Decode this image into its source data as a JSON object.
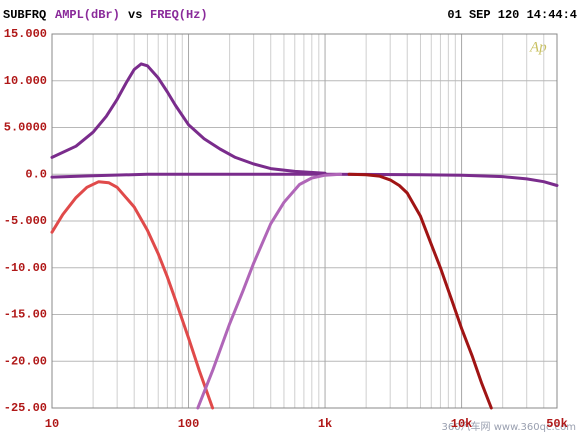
{
  "header": {
    "name": "SUBFRQ",
    "y_label": "AMPL(dBr)",
    "vs": "vs",
    "x_label": "FREQ(Hz)",
    "date": "01 SEP 120 14:44:4",
    "logo": "Ap",
    "watermark": "360汽车网 www.360qc.com"
  },
  "chart_data": {
    "type": "line",
    "xscale": "log",
    "grid": true,
    "xlim": [
      10,
      50000
    ],
    "xticks": [
      10,
      100,
      {
        "value": 1000,
        "label": "1k"
      },
      {
        "value": 10000,
        "label": "10k"
      },
      {
        "value": 50000,
        "label": "50k"
      }
    ],
    "xminor": [
      20,
      30,
      40,
      50,
      60,
      70,
      80,
      90,
      200,
      300,
      400,
      500,
      600,
      700,
      800,
      900,
      2000,
      3000,
      4000,
      5000,
      6000,
      7000,
      8000,
      9000,
      20000,
      30000,
      40000
    ],
    "ylim": [
      -25,
      15
    ],
    "yticks": [
      {
        "value": 15,
        "label": "15.000"
      },
      {
        "value": 10,
        "label": "10.000"
      },
      {
        "value": 5,
        "label": "5.0000"
      },
      {
        "value": 0,
        "label": "0.0"
      },
      {
        "value": -5,
        "label": "-5.000"
      },
      {
        "value": -10,
        "label": "-10.00"
      },
      {
        "value": -15,
        "label": "-15.00"
      },
      {
        "value": -20,
        "label": "-20.00"
      },
      {
        "value": -25,
        "label": "-25.00"
      }
    ],
    "series": [
      {
        "color": "#7a2c8c",
        "x": [
          10,
          15,
          20,
          25,
          30,
          35,
          40,
          45,
          50,
          60,
          70,
          80,
          100,
          130,
          170,
          220,
          300,
          400,
          600,
          1000
        ],
        "values": [
          1.8,
          3.0,
          4.5,
          6.2,
          8.0,
          9.8,
          11.2,
          11.8,
          11.6,
          10.3,
          8.8,
          7.4,
          5.3,
          3.8,
          2.7,
          1.8,
          1.1,
          0.6,
          0.3,
          0.1
        ]
      },
      {
        "color": "#7a2c8c",
        "x": [
          10,
          20,
          50,
          100,
          1000,
          5000,
          10000,
          20000,
          30000,
          40000,
          50000
        ],
        "values": [
          -0.3,
          -0.15,
          0,
          0,
          0,
          -0.05,
          -0.1,
          -0.25,
          -0.5,
          -0.8,
          -1.2
        ]
      },
      {
        "color": "#e04a4a",
        "x": [
          10,
          12,
          15,
          18,
          22,
          26,
          30,
          40,
          50,
          60,
          70,
          80,
          100,
          120,
          150
        ],
        "values": [
          -6.2,
          -4.3,
          -2.5,
          -1.4,
          -0.8,
          -0.9,
          -1.4,
          -3.5,
          -6,
          -8.5,
          -11,
          -13.4,
          -17.5,
          -21,
          -25
        ]
      },
      {
        "color": "#b066b8",
        "x": [
          117,
          150,
          200,
          250,
          300,
          400,
          500,
          650,
          800,
          1000,
          1300
        ],
        "values": [
          -25,
          -21,
          -16,
          -12.5,
          -9.5,
          -5.3,
          -3,
          -1.1,
          -0.4,
          -0.1,
          0
        ]
      },
      {
        "color": "#a01414",
        "x": [
          1500,
          2000,
          2500,
          3000,
          3500,
          4000,
          5000,
          6000,
          7000,
          8500,
          10000,
          12000,
          14000,
          16500
        ],
        "values": [
          0,
          -0.05,
          -0.2,
          -0.6,
          -1.2,
          -2,
          -4.5,
          -7.5,
          -10,
          -13.5,
          -16.5,
          -19.5,
          -22.3,
          -25
        ]
      }
    ]
  }
}
